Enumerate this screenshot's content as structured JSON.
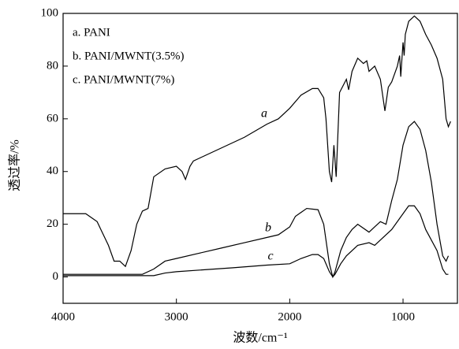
{
  "chart_data": {
    "type": "line",
    "x_label": "波数/cm⁻¹",
    "y_label": "透过率/%",
    "xlim": [
      4000,
      520
    ],
    "xticks": [
      4000,
      3000,
      2000,
      1000
    ],
    "ylim": [
      -10,
      100
    ],
    "yticks": [
      0,
      20,
      40,
      60,
      80,
      100
    ],
    "legend": "upper left",
    "annotations": [
      "a",
      "b",
      "c"
    ],
    "series": [
      {
        "name": "a. PANI",
        "color": "#000000",
        "x": [
          4000,
          3800,
          3700,
          3600,
          3550,
          3500,
          3450,
          3400,
          3350,
          3300,
          3250,
          3200,
          3100,
          3000,
          2950,
          2920,
          2880,
          2850,
          2800,
          2600,
          2400,
          2200,
          2100,
          2000,
          1900,
          1800,
          1750,
          1700,
          1680,
          1650,
          1630,
          1610,
          1590,
          1560,
          1500,
          1480,
          1450,
          1400,
          1350,
          1320,
          1300,
          1250,
          1200,
          1160,
          1130,
          1100,
          1050,
          1030,
          1020,
          1000,
          990,
          980,
          950,
          900,
          850,
          800,
          750,
          700,
          650,
          620,
          600,
          580
        ],
        "values": [
          24,
          24,
          21,
          12,
          6,
          6,
          4,
          10,
          20,
          25,
          26,
          38,
          41,
          42,
          40,
          37,
          42,
          44,
          45,
          49,
          53,
          58,
          60,
          64,
          69,
          71.5,
          71.5,
          68,
          60,
          40,
          36,
          50,
          38,
          70,
          75,
          71,
          78,
          83,
          81,
          82,
          78,
          80,
          75,
          63,
          72,
          74,
          80,
          84,
          76,
          89,
          84,
          92,
          97,
          99,
          97,
          92,
          88,
          83,
          75,
          60,
          57,
          59
        ]
      },
      {
        "name": "b. PANI/MWNT(3.5%)",
        "color": "#000000",
        "x": [
          4000,
          3500,
          3300,
          3200,
          3100,
          3000,
          2800,
          2600,
          2400,
          2200,
          2100,
          2000,
          1950,
          1850,
          1750,
          1700,
          1650,
          1620,
          1600,
          1550,
          1500,
          1450,
          1400,
          1300,
          1250,
          1200,
          1150,
          1100,
          1050,
          1000,
          950,
          900,
          850,
          800,
          750,
          700,
          650,
          620,
          600
        ],
        "values": [
          1,
          1,
          1,
          3,
          6,
          7,
          9,
          11,
          13,
          15,
          16,
          19,
          23,
          26,
          25.5,
          20,
          5,
          0,
          2,
          10,
          15,
          18,
          20,
          17,
          19,
          21,
          20,
          29,
          37,
          50,
          57,
          59,
          56,
          48,
          36,
          20,
          8,
          6,
          8
        ]
      },
      {
        "name": "c. PANI/MWNT(7%)",
        "color": "#000000",
        "x": [
          4000,
          3500,
          3200,
          3100,
          3000,
          2500,
          2200,
          2000,
          1900,
          1800,
          1750,
          1700,
          1650,
          1620,
          1600,
          1550,
          1500,
          1400,
          1300,
          1250,
          1200,
          1100,
          1000,
          950,
          900,
          850,
          800,
          700,
          650,
          620,
          600
        ],
        "values": [
          0.5,
          0.5,
          0.5,
          1.5,
          2,
          3.5,
          4.5,
          5,
          7,
          8.5,
          8.5,
          7,
          2,
          0,
          1,
          5,
          8,
          12,
          13,
          12,
          14,
          18,
          24,
          27,
          27,
          24,
          18,
          10,
          3,
          1,
          1
        ]
      }
    ]
  }
}
